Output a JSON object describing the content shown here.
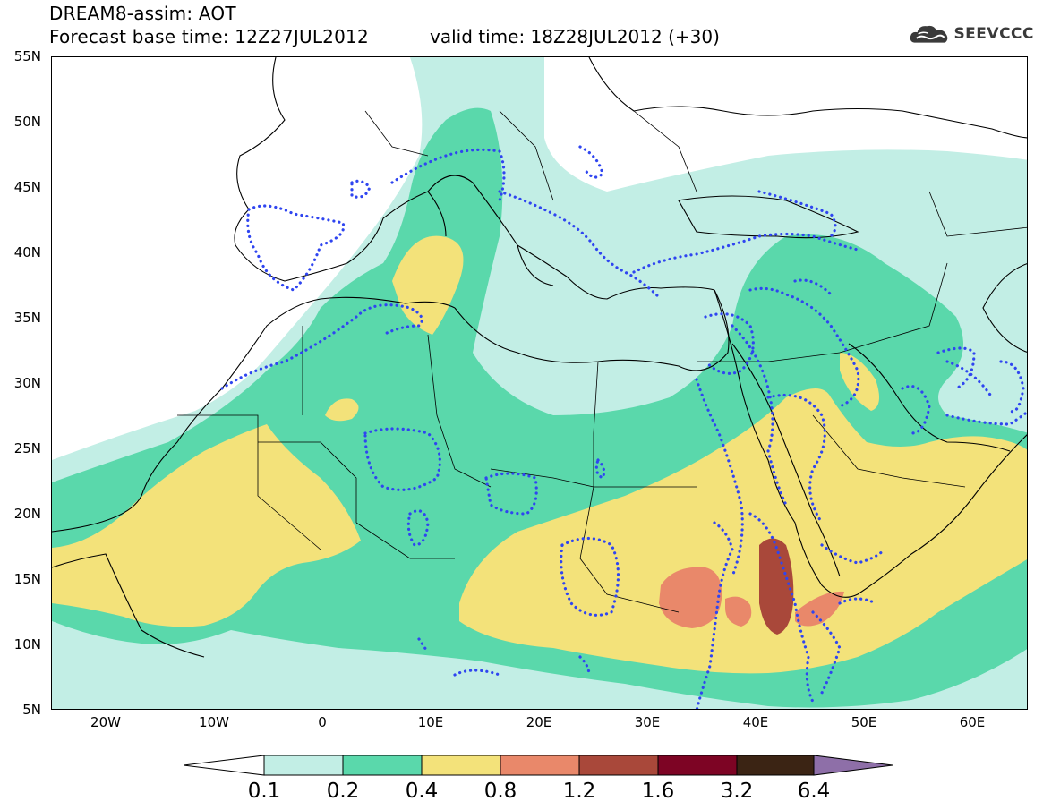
{
  "header": {
    "title": "DREAM8-assim: AOT",
    "base_time": "Forecast base time: 12Z27JUL2012",
    "valid_time": "valid time: 18Z28JUL2012 (+30)",
    "logo_text": "SEEVCCC",
    "logo_icon": "cloud-icon"
  },
  "map": {
    "lon_range": [
      -25,
      65
    ],
    "lat_range": [
      5,
      55
    ],
    "y_ticks": [
      "55N",
      "50N",
      "45N",
      "40N",
      "35N",
      "30N",
      "25N",
      "20N",
      "15N",
      "10N",
      "5N"
    ],
    "x_ticks": [
      "20W",
      "10W",
      "0",
      "10E",
      "20E",
      "30E",
      "40E",
      "50E",
      "60E"
    ],
    "field": "AOT"
  },
  "colorbar": {
    "labels": [
      "0.1",
      "0.2",
      "0.4",
      "0.8",
      "1.2",
      "1.6",
      "3.2",
      "6.4"
    ],
    "colors": [
      "#ffffff",
      "#c2eee5",
      "#5ad8ab",
      "#f3e27a",
      "#e9886a",
      "#a9483a",
      "#7d0424",
      "#3b2414",
      "#8e6fa8"
    ]
  },
  "colors": {
    "level_01": "#c2eee5",
    "level_02": "#5ad8ab",
    "level_04": "#f3e27a",
    "level_08": "#e9886a",
    "level_12": "#a9483a",
    "dotted_contour": "#2f45f0",
    "coastline": "#000000"
  }
}
